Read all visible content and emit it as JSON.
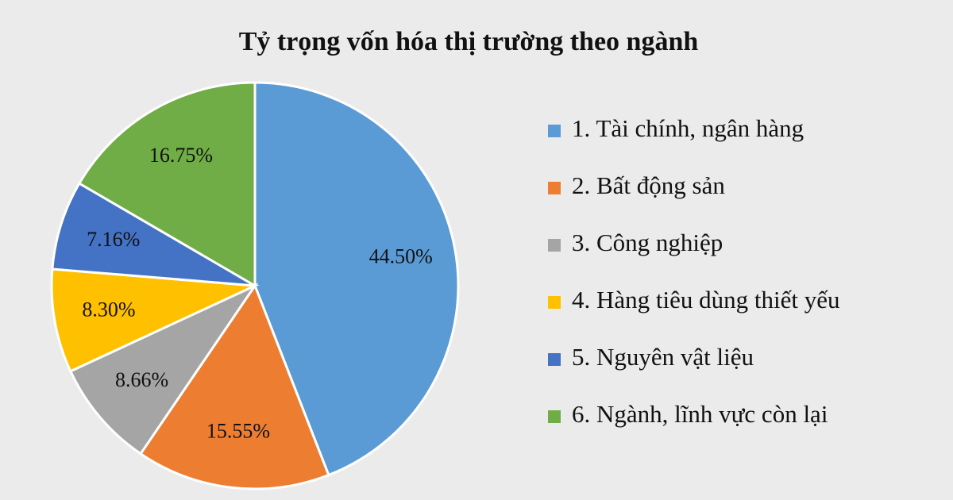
{
  "chart_data": {
    "type": "pie",
    "title": "Tỷ trọng vốn hóa thị trường theo ngành",
    "categories": [
      "1. Tài chính, ngân hàng",
      "2. Bất động sản",
      "3. Công nghiệp",
      "4. Hàng tiêu dùng thiết yếu",
      "5. Nguyên vật liệu",
      "6. Ngành, lĩnh vực còn lại"
    ],
    "values": [
      44.5,
      15.55,
      8.66,
      8.3,
      7.16,
      16.75
    ],
    "value_labels": [
      "44.50%",
      "15.55%",
      "8.66%",
      "8.30%",
      "7.16%",
      "16.75%"
    ],
    "colors": [
      "#5b9bd5",
      "#ed7d31",
      "#a5a5a5",
      "#ffc000",
      "#4472c4",
      "#70ad47"
    ],
    "legend": "right"
  }
}
